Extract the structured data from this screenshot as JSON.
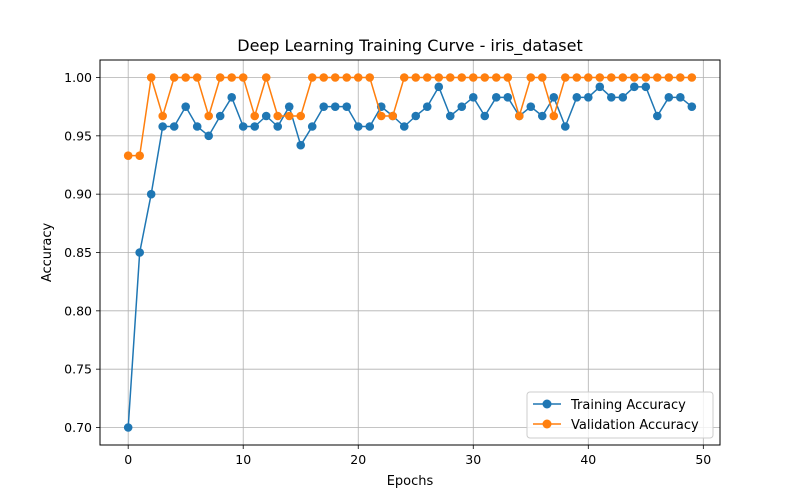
{
  "chart_data": {
    "type": "line",
    "title": "Deep Learning Training Curve - iris_dataset",
    "xlabel": "Epochs",
    "ylabel": "Accuracy",
    "xlim": [
      -2.45,
      51.45
    ],
    "ylim": [
      0.685,
      1.015
    ],
    "x_ticks": [
      0,
      10,
      20,
      30,
      40,
      50
    ],
    "y_ticks": [
      0.7,
      0.75,
      0.8,
      0.85,
      0.9,
      0.95,
      1.0
    ],
    "x_tick_labels": [
      "0",
      "10",
      "20",
      "30",
      "40",
      "50"
    ],
    "y_tick_labels": [
      "0.70",
      "0.75",
      "0.80",
      "0.85",
      "0.90",
      "0.95",
      "1.00"
    ],
    "grid": true,
    "legend_position": "lower-right",
    "x": [
      0,
      1,
      2,
      3,
      4,
      5,
      6,
      7,
      8,
      9,
      10,
      11,
      12,
      13,
      14,
      15,
      16,
      17,
      18,
      19,
      20,
      21,
      22,
      23,
      24,
      25,
      26,
      27,
      28,
      29,
      30,
      31,
      32,
      33,
      34,
      35,
      36,
      37,
      38,
      39,
      40,
      41,
      42,
      43,
      44,
      45,
      46,
      47,
      48,
      49
    ],
    "series": [
      {
        "name": "Training Accuracy",
        "color": "#1f77b4",
        "values": [
          0.7,
          0.85,
          0.9,
          0.958,
          0.958,
          0.975,
          0.958,
          0.95,
          0.967,
          0.983,
          0.958,
          0.958,
          0.967,
          0.958,
          0.975,
          0.942,
          0.958,
          0.975,
          0.975,
          0.975,
          0.958,
          0.958,
          0.975,
          0.967,
          0.958,
          0.967,
          0.975,
          0.992,
          0.967,
          0.975,
          0.983,
          0.967,
          0.983,
          0.983,
          0.967,
          0.975,
          0.967,
          0.983,
          0.958,
          0.983,
          0.983,
          0.992,
          0.983,
          0.983,
          0.992,
          0.992,
          0.967,
          0.983,
          0.983,
          0.975
        ]
      },
      {
        "name": "Validation Accuracy",
        "color": "#ff7f0e",
        "values": [
          0.933,
          0.933,
          1.0,
          0.967,
          1.0,
          1.0,
          1.0,
          0.967,
          1.0,
          1.0,
          1.0,
          0.967,
          1.0,
          0.967,
          0.967,
          0.967,
          1.0,
          1.0,
          1.0,
          1.0,
          1.0,
          1.0,
          0.967,
          0.967,
          1.0,
          1.0,
          1.0,
          1.0,
          1.0,
          1.0,
          1.0,
          1.0,
          1.0,
          1.0,
          0.967,
          1.0,
          1.0,
          0.967,
          1.0,
          1.0,
          1.0,
          1.0,
          1.0,
          1.0,
          1.0,
          1.0,
          1.0,
          1.0,
          1.0,
          1.0
        ]
      }
    ]
  }
}
